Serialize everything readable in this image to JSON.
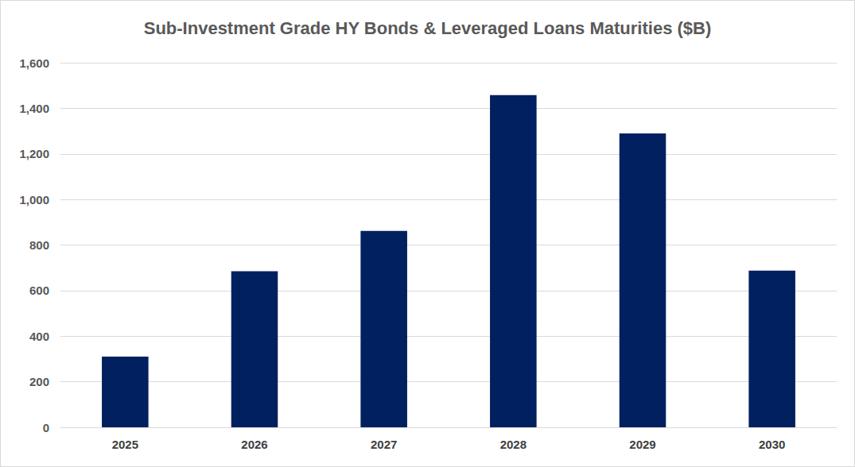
{
  "chart_data": {
    "type": "bar",
    "title": "Sub-Investment Grade HY Bonds & Leveraged Loans Maturities ($B)",
    "categories": [
      "2025",
      "2026",
      "2027",
      "2028",
      "2029",
      "2030"
    ],
    "values": [
      310,
      685,
      862,
      1458,
      1290,
      688
    ],
    "color": "#002060",
    "ylim": [
      0,
      1600
    ],
    "yticks": [
      0,
      200,
      400,
      600,
      800,
      {
        "value": 1000,
        "label": "1,000"
      },
      {
        "value": 1200,
        "label": "1,200"
      },
      {
        "value": 1400,
        "label": "1,400"
      },
      {
        "value": 1600,
        "label": "1,600"
      }
    ],
    "grid": true
  }
}
